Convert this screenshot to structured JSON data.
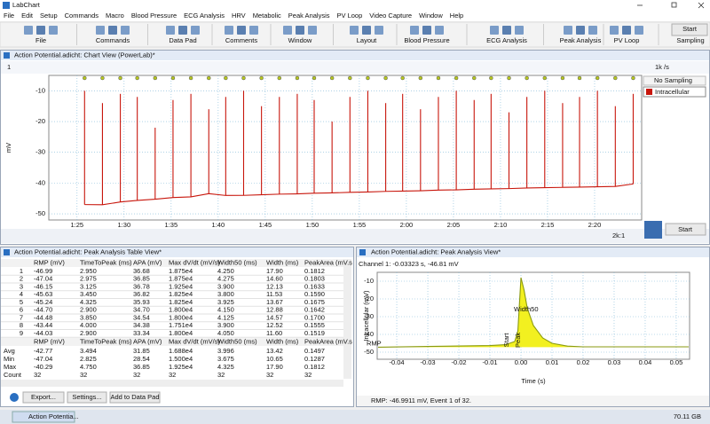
{
  "app": {
    "title": "LabChart",
    "menu": [
      "File",
      "Edit",
      "Setup",
      "Commands",
      "Macro",
      "Blood Pressure",
      "ECG Analysis",
      "HRV",
      "Metabolic",
      "Peak Analysis",
      "PV Loop",
      "Video Capture",
      "Window",
      "Help"
    ],
    "toolbar_groups": [
      "File",
      "Commands",
      "Data Pad",
      "Comments",
      "Window",
      "Layout",
      "Blood Pressure",
      "ECG Analysis",
      "Peak Analysis",
      "PV Loop",
      "Sampling"
    ],
    "start_button": "Start"
  },
  "chart_view": {
    "title": "Action Potential.adicht: Chart View (PowerLab)*",
    "channel": "1",
    "rate": "1k /s",
    "sampling": "No Sampling",
    "zoom": "2k:1",
    "start_button": "Start"
  },
  "table_view": {
    "title": "Action Potential.adicht: Peak Analysis Table View*",
    "columns": [
      "RMP (mV)",
      "TimeToPeak (ms)",
      "APA (mV)",
      "Max dV/dt (mV/s)",
      "Width50 (ms)",
      "Width (ms)",
      "PeakArea (mV.s"
    ],
    "rows": [
      [
        "1",
        "-46.99",
        "2.950",
        "36.68",
        "1.875e4",
        "4.250",
        "17.90",
        "0.1812"
      ],
      [
        "2",
        "-47.04",
        "2.975",
        "36.85",
        "1.875e4",
        "4.275",
        "14.60",
        "0.1803"
      ],
      [
        "3",
        "-46.15",
        "3.125",
        "36.78",
        "1.925e4",
        "3.900",
        "12.13",
        "0.1633"
      ],
      [
        "4",
        "-45.63",
        "3.450",
        "36.82",
        "1.825e4",
        "3.800",
        "11.53",
        "0.1590"
      ],
      [
        "5",
        "-45.24",
        "4.325",
        "35.93",
        "1.825e4",
        "3.925",
        "13.67",
        "0.1675"
      ],
      [
        "6",
        "-44.70",
        "2.900",
        "34.70",
        "1.800e4",
        "4.150",
        "12.88",
        "0.1642"
      ],
      [
        "7",
        "-44.48",
        "3.850",
        "34.54",
        "1.800e4",
        "4.125",
        "14.57",
        "0.1700"
      ],
      [
        "8",
        "-43.44",
        "4.000",
        "34.38",
        "1.751e4",
        "3.900",
        "12.52",
        "0.1555"
      ],
      [
        "9",
        "-44.03",
        "2.900",
        "33.34",
        "1.800e4",
        "4.050",
        "11.60",
        "0.1519"
      ]
    ],
    "summary": [
      [
        "Avg",
        "-42.77",
        "3.494",
        "31.85",
        "1.688e4",
        "3.996",
        "13.42",
        "0.1497"
      ],
      [
        "Min",
        "-47.04",
        "2.825",
        "28.54",
        "1.500e4",
        "3.675",
        "10.65",
        "0.1287"
      ],
      [
        "Max",
        "-40.29",
        "4.750",
        "36.85",
        "1.925e4",
        "4.325",
        "17.90",
        "0.1812"
      ],
      [
        "Count",
        "32",
        "32",
        "32",
        "32",
        "32",
        "32",
        "32"
      ]
    ],
    "buttons": [
      "Export...",
      "Settings...",
      "Add to Data Pad"
    ]
  },
  "peak_view": {
    "title": "Action Potential.adicht: Peak Analysis View*",
    "cursor": "Channel 1: -0.03323 s, -46.81 mV",
    "annotations": [
      "Width50",
      "RMP",
      "Start",
      "Peak"
    ],
    "status": "RMP: -46.9911 mV, Event 1 of 32."
  },
  "taskbar": {
    "task": "Action Potentia...",
    "disk": "70.11 GB"
  },
  "chart_data": [
    {
      "type": "line",
      "y_label": "mV",
      "xlim": [
        82,
        145
      ],
      "ylim": [
        -52,
        -5
      ],
      "yticks": [
        -10,
        -20,
        -30,
        -40,
        -50
      ],
      "xticks": [
        {
          "value": 85,
          "label": "1:25"
        },
        {
          "value": 90,
          "label": "1:30"
        },
        {
          "value": 95,
          "label": "1:35"
        },
        {
          "value": 100,
          "label": "1:40"
        },
        {
          "value": 105,
          "label": "1:45"
        },
        {
          "value": 110,
          "label": "1:50"
        },
        {
          "value": 115,
          "label": "1:55"
        },
        {
          "value": 120,
          "label": "2:00"
        },
        {
          "value": 125,
          "label": "2:05"
        },
        {
          "value": 130,
          "label": "2:10"
        },
        {
          "value": 135,
          "label": "2:15"
        },
        {
          "value": 140,
          "label": "2:20"
        }
      ],
      "grid": true,
      "series": [
        {
          "name": "Intracellular",
          "color": "#c8160c",
          "x": [
            85.8,
            87.7,
            89.6,
            91.4,
            93.3,
            95.2,
            97.1,
            99.0,
            100.8,
            102.7,
            104.6,
            106.5,
            108.4,
            110.2,
            112.1,
            114.0,
            115.9,
            117.8,
            119.6,
            121.5,
            123.4,
            125.3,
            127.2,
            129.0,
            130.9,
            132.8,
            134.7,
            136.6,
            138.4,
            140.3,
            142.2,
            144.1
          ],
          "values": [
            -46.99,
            -47.04,
            -46.15,
            -45.63,
            -45.24,
            -44.7,
            -44.48,
            -43.44,
            -44.03,
            -44.0,
            -43.8,
            -43.6,
            -43.5,
            -43.3,
            -43.2,
            -43.0,
            -42.9,
            -42.7,
            -42.6,
            -42.5,
            -42.3,
            -42.2,
            -42.0,
            -41.9,
            -41.8,
            -41.6,
            -41.5,
            -41.4,
            -41.3,
            -41.2,
            -41.1,
            -40.29
          ],
          "peaks": [
            -10,
            -14,
            -11,
            -12,
            -22,
            -13,
            -11,
            -16,
            -12,
            -10,
            -15,
            -12,
            -11,
            -13,
            -20,
            -12,
            -10,
            -14,
            -11,
            -16,
            -12,
            -10,
            -13,
            -11,
            -17,
            -12,
            -10,
            -14,
            -12,
            -10,
            -15,
            -11
          ]
        }
      ]
    },
    {
      "type": "line",
      "y_label": "Intracellular (mV)",
      "x_label": "Time (s)",
      "xlim": [
        -0.0463,
        0.0543
      ],
      "ylim": [
        -54,
        -5
      ],
      "yticks": [
        -10,
        -20,
        -30,
        -40,
        -50
      ],
      "xticks": [
        -0.04,
        -0.03,
        -0.02,
        -0.01,
        {
          "value": 0,
          "label": "0.00"
        },
        0.01,
        0.02,
        0.03,
        0.04,
        0.05
      ],
      "grid": true,
      "series": [
        {
          "color": "#8a9a10",
          "fill": "#f2f020",
          "x": [
            -0.046,
            -0.03,
            -0.01,
            -0.005,
            -0.002,
            -0.001,
            0,
            0.001,
            0.002,
            0.004,
            0.007,
            0.01,
            0.015,
            0.02,
            0.054
          ],
          "values": [
            -47.2,
            -46.8,
            -46.3,
            -45.8,
            -44,
            -38,
            -8,
            -15,
            -25,
            -35,
            -42,
            -45,
            -46.6,
            -47.0,
            -47.0
          ]
        }
      ]
    }
  ]
}
